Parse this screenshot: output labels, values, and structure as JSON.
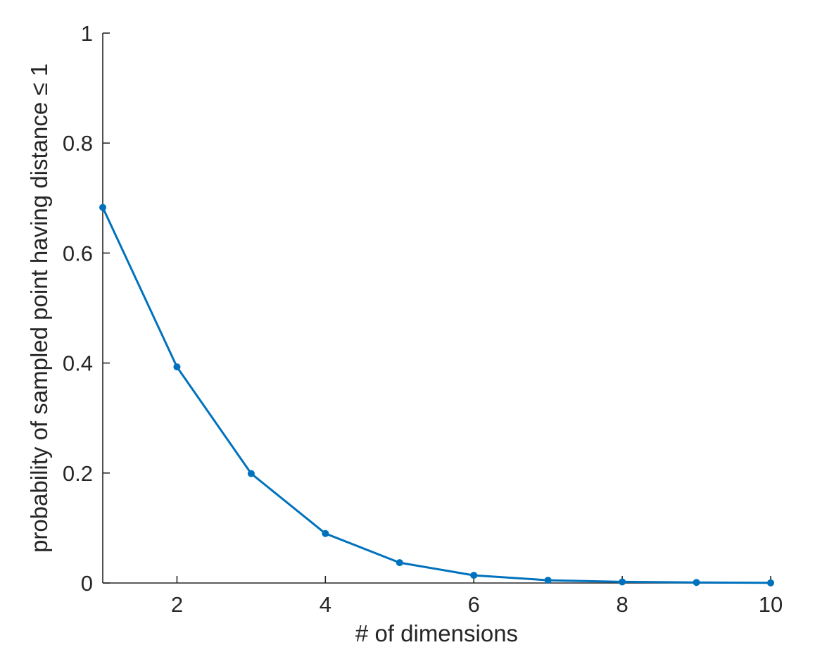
{
  "chart_data": {
    "type": "line",
    "title": "",
    "xlabel": "# of dimensions",
    "ylabel": "probability of sampled point having distance ≤ 1",
    "xlim": [
      1,
      10
    ],
    "ylim": [
      0,
      1
    ],
    "xticks": [
      2,
      4,
      6,
      8,
      10
    ],
    "yticks": [
      0,
      0.2,
      0.4,
      0.6,
      0.8,
      1
    ],
    "xtick_labels": [
      "2",
      "4",
      "6",
      "8",
      "10"
    ],
    "ytick_labels": [
      "0",
      "0.2",
      "0.4",
      "0.6",
      "0.8",
      "1"
    ],
    "grid": false,
    "series": [
      {
        "color": "#0072BD",
        "marker": "dot",
        "x": [
          1,
          2,
          3,
          4,
          5,
          6,
          7,
          8,
          9,
          10
        ],
        "y": [
          0.683,
          0.393,
          0.199,
          0.09,
          0.037,
          0.014,
          0.005,
          0.002,
          0.001,
          0.0002
        ]
      }
    ]
  }
}
